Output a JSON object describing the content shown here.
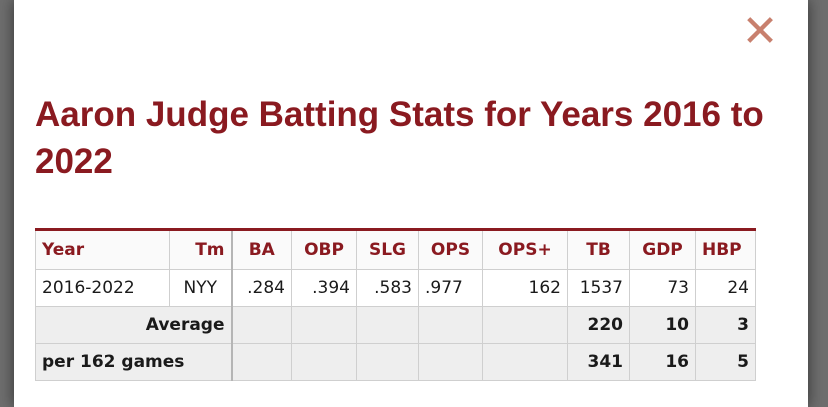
{
  "modal": {
    "close_icon": "close-x-icon",
    "title": "Aaron Judge Batting Stats for Years 2016 to 2022"
  },
  "table": {
    "headers": [
      "Year",
      "Tm",
      "BA",
      "OBP",
      "SLG",
      "OPS",
      "OPS+",
      "TB",
      "GDP",
      "HBP"
    ],
    "row": [
      "2016-2022",
      "NYY",
      ".284",
      ".394",
      ".583",
      ".977",
      "162",
      "1537",
      "73",
      "24"
    ],
    "average": {
      "label": "Average",
      "TB": "220",
      "GDP": "10",
      "HBP": "3"
    },
    "per162": {
      "label": "per 162 games",
      "TB": "341",
      "GDP": "16",
      "HBP": "5"
    }
  },
  "colors": {
    "accent": "#8a1a20",
    "close": "#c8806e"
  }
}
